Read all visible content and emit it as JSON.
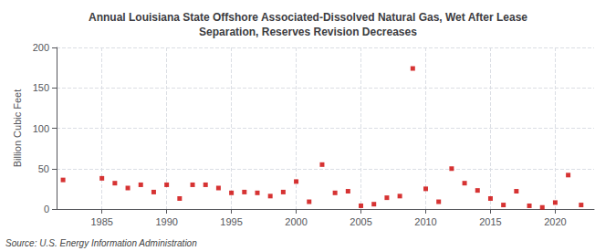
{
  "chart_data": {
    "type": "scatter",
    "title": "Annual Louisiana State Offshore Associated-Dissolved Natural Gas, Wet After Lease\nSeparation, Reserves Revision Decreases",
    "ylabel": "Billion Cubic Feet",
    "annotation": "Source: U.S. Energy Information Administration",
    "x": [
      1982,
      1985,
      1986,
      1987,
      1988,
      1989,
      1990,
      1991,
      1992,
      1993,
      1994,
      1995,
      1996,
      1997,
      1998,
      1999,
      2000,
      2001,
      2002,
      2003,
      2004,
      2005,
      2006,
      2007,
      2008,
      2009,
      2010,
      2011,
      2012,
      2013,
      2014,
      2015,
      2016,
      2017,
      2018,
      2019,
      2020,
      2021,
      2022
    ],
    "values": [
      36,
      38,
      32,
      26,
      30,
      21,
      30,
      13,
      30,
      30,
      26,
      20,
      21,
      20,
      16,
      21,
      34,
      9,
      55,
      20,
      22,
      4,
      6,
      14,
      16,
      174,
      25,
      9,
      50,
      32,
      23,
      13,
      5,
      22,
      4,
      2,
      8,
      42,
      5
    ],
    "color": "#cc0000",
    "marker": "square",
    "xlim": [
      1981.5,
      2023
    ],
    "xticks": [
      1985,
      1990,
      1995,
      2000,
      2005,
      2010,
      2015,
      2020
    ],
    "ylim": [
      0,
      200
    ],
    "yticks": [
      0,
      50,
      100,
      150,
      200
    ],
    "grid": true
  }
}
